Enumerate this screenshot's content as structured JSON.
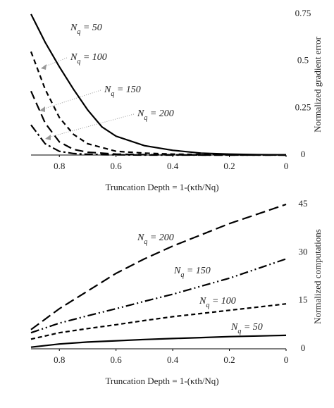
{
  "chart_data": [
    {
      "type": "line",
      "xlabel": "Truncation Depth = 1-(κth/Nq)",
      "ylabel": "Normalized gradient error",
      "x": [
        0.9,
        0.85,
        0.8,
        0.75,
        0.7,
        0.65,
        0.6,
        0.5,
        0.4,
        0.3,
        0.2,
        0.1,
        0
      ],
      "xlim": [
        0.9,
        0
      ],
      "xticks": [
        0.8,
        0.6,
        0.4,
        0.2,
        0
      ],
      "ylim": [
        0,
        0.75
      ],
      "yticks": [
        0,
        0.25,
        0.5,
        0.75
      ],
      "grid": false,
      "series": [
        {
          "name": "Nq = 50",
          "color": "#000000",
          "dash": "none",
          "values": [
            0.75,
            0.6,
            0.47,
            0.35,
            0.24,
            0.15,
            0.1,
            0.05,
            0.025,
            0.01,
            0.005,
            0.002,
            0.001
          ]
        },
        {
          "name": "Nq = 100",
          "color": "#000000",
          "dash": "7 5",
          "values": [
            0.55,
            0.35,
            0.2,
            0.11,
            0.06,
            0.04,
            0.02,
            0.01,
            0.005,
            0.003,
            0.002,
            0.001,
            0
          ]
        },
        {
          "name": "Nq = 150",
          "color": "#000000",
          "dash": "12 6",
          "values": [
            0.34,
            0.17,
            0.07,
            0.03,
            0.015,
            0.01,
            0.005,
            0.002,
            0.001,
            0,
            0,
            0,
            0
          ]
        },
        {
          "name": "Nq = 200",
          "color": "#000000",
          "dash": "12 4 3 4",
          "values": [
            0.16,
            0.06,
            0.02,
            0.008,
            0.004,
            0.002,
            0.001,
            0,
            0,
            0,
            0,
            0,
            0
          ]
        }
      ]
    },
    {
      "type": "line",
      "xlabel": "Truncation Depth = 1-(κth/Nq)",
      "ylabel": "Normalized computations",
      "x": [
        0.9,
        0.8,
        0.7,
        0.6,
        0.5,
        0.4,
        0.3,
        0.2,
        0.1,
        0
      ],
      "xlim": [
        0.9,
        0
      ],
      "xticks": [
        0.8,
        0.6,
        0.4,
        0.2,
        0
      ],
      "ylim": [
        0,
        45
      ],
      "yticks": [
        0,
        15,
        30,
        45
      ],
      "grid": false,
      "series": [
        {
          "name": "Nq = 200",
          "color": "#000000",
          "dash": "14 6",
          "values": [
            6,
            12.5,
            18,
            23.5,
            28,
            32,
            35.5,
            39,
            42,
            45
          ]
        },
        {
          "name": "Nq = 150",
          "color": "#000000",
          "dash": "12 4 2 4 2 4",
          "values": [
            5,
            8,
            10.3,
            12.5,
            14.8,
            17,
            19.5,
            22,
            25,
            28
          ]
        },
        {
          "name": "Nq = 100",
          "color": "#000000",
          "dash": "6 4",
          "values": [
            3,
            5,
            6.3,
            7.5,
            8.8,
            10,
            11,
            12,
            13,
            14
          ]
        },
        {
          "name": "Nq = 50",
          "color": "#000000",
          "dash": "none",
          "values": [
            0.5,
            1.5,
            2.1,
            2.5,
            2.9,
            3.2,
            3.5,
            3.8,
            4,
            4.2
          ]
        }
      ]
    }
  ]
}
